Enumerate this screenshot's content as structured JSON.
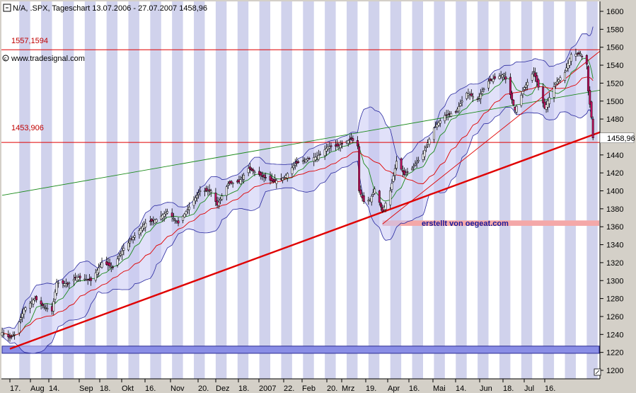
{
  "chart_data": {
    "type": "candlestick",
    "title": "N/A, .SPX, Tageschart 13.07.2006 - 27.07.2007 1458,96",
    "symbol_source": "N/A",
    "symbol": ".SPX",
    "period": "Tageschart",
    "range_label": "13.07.2006 - 27.07.2007",
    "last_price_label": "1458,96",
    "watermark": "www.tradesignal.com",
    "annotation": "erstellt von oegeat.com",
    "ylim": [
      1200,
      1610
    ],
    "y_ticks": [
      1200,
      1220,
      1240,
      1260,
      1280,
      1300,
      1320,
      1340,
      1360,
      1380,
      1400,
      1420,
      1440,
      1460,
      1480,
      1500,
      1520,
      1540,
      1560,
      1580,
      1600
    ],
    "x_ticks": [
      "17.",
      "Aug",
      "14.",
      "Sep",
      "18.",
      "Okt",
      "16.",
      "Nov",
      "20.",
      "Dez",
      "18.",
      "2007",
      "22.",
      "Feb",
      "20.",
      "Mrz",
      "19.",
      "Apr",
      "16.",
      "Mai",
      "14.",
      "Jun",
      "18.",
      "Jul",
      "16."
    ],
    "horizontal_levels": [
      {
        "label": "1557,1594",
        "value": 1557.1594,
        "color": "#e00000"
      },
      {
        "label": "1453,906",
        "value": 1453.906,
        "color": "#e00000"
      }
    ],
    "zones": [
      {
        "name": "support-zone",
        "y_from": 1361,
        "y_to": 1367,
        "x_from": "2007-03-14",
        "x_to": "2007-07-31",
        "color": "#f4a8a8"
      },
      {
        "name": "bottom-zone",
        "y_from": 1219,
        "y_to": 1227,
        "x_from": "2006-07-13",
        "x_to": "2007-07-31",
        "color": "#8a8ee6"
      }
    ],
    "trendlines": [
      {
        "name": "main-support",
        "color": "#e00000",
        "p1": [
          "2006-07-18",
          1224
        ],
        "p2": [
          "2007-07-31",
          1465
        ],
        "width": "thick"
      },
      {
        "name": "upper-green",
        "color": "#1a8a1a",
        "p1": [
          "2006-07-13",
          1395
        ],
        "p2": [
          "2007-07-31",
          1512
        ],
        "width": "thin"
      },
      {
        "name": "steep-red",
        "color": "#e00000",
        "p1": [
          "2007-03-14",
          1363
        ],
        "p2": [
          "2007-07-31",
          1555
        ],
        "width": "thin"
      }
    ],
    "series": [
      {
        "name": "price",
        "kind": "candles",
        "anchors": [
          [
            "2006-07-13",
            1242
          ],
          [
            "2006-07-18",
            1236
          ],
          [
            "2006-07-21",
            1240
          ],
          [
            "2006-07-27",
            1268
          ],
          [
            "2006-08-03",
            1280
          ],
          [
            "2006-08-08",
            1272
          ],
          [
            "2006-08-14",
            1266
          ],
          [
            "2006-08-17",
            1298
          ],
          [
            "2006-08-24",
            1296
          ],
          [
            "2006-08-30",
            1304
          ],
          [
            "2006-09-08",
            1300
          ],
          [
            "2006-09-15",
            1320
          ],
          [
            "2006-09-22",
            1315
          ],
          [
            "2006-09-29",
            1336
          ],
          [
            "2006-10-06",
            1350
          ],
          [
            "2006-10-13",
            1364
          ],
          [
            "2006-10-20",
            1368
          ],
          [
            "2006-10-27",
            1377
          ],
          [
            "2006-11-03",
            1364
          ],
          [
            "2006-11-10",
            1382
          ],
          [
            "2006-11-17",
            1400
          ],
          [
            "2006-11-24",
            1400
          ],
          [
            "2006-11-28",
            1384
          ],
          [
            "2006-12-05",
            1408
          ],
          [
            "2006-12-12",
            1410
          ],
          [
            "2006-12-18",
            1425
          ],
          [
            "2006-12-27",
            1416
          ],
          [
            "2007-01-03",
            1410
          ],
          [
            "2007-01-10",
            1415
          ],
          [
            "2007-01-17",
            1430
          ],
          [
            "2007-01-24",
            1435
          ],
          [
            "2007-01-31",
            1438
          ],
          [
            "2007-02-07",
            1449
          ],
          [
            "2007-02-14",
            1450
          ],
          [
            "2007-02-22",
            1458
          ],
          [
            "2007-02-26",
            1450
          ],
          [
            "2007-02-27",
            1400
          ],
          [
            "2007-03-02",
            1388
          ],
          [
            "2007-03-06",
            1390
          ],
          [
            "2007-03-09",
            1402
          ],
          [
            "2007-03-14",
            1377
          ],
          [
            "2007-03-19",
            1400
          ],
          [
            "2007-03-23",
            1433
          ],
          [
            "2007-03-28",
            1418
          ],
          [
            "2007-04-02",
            1425
          ],
          [
            "2007-04-09",
            1441
          ],
          [
            "2007-04-16",
            1470
          ],
          [
            "2007-04-23",
            1484
          ],
          [
            "2007-04-30",
            1488
          ],
          [
            "2007-05-07",
            1509
          ],
          [
            "2007-05-14",
            1502
          ],
          [
            "2007-05-21",
            1522
          ],
          [
            "2007-05-31",
            1530
          ],
          [
            "2007-06-07",
            1490
          ],
          [
            "2007-06-13",
            1515
          ],
          [
            "2007-06-19",
            1533
          ],
          [
            "2007-06-26",
            1492
          ],
          [
            "2007-07-03",
            1520
          ],
          [
            "2007-07-09",
            1532
          ],
          [
            "2007-07-13",
            1552
          ],
          [
            "2007-07-19",
            1553
          ],
          [
            "2007-07-23",
            1541
          ],
          [
            "2007-07-24",
            1511
          ],
          [
            "2007-07-26",
            1482
          ],
          [
            "2007-07-27",
            1458.96
          ]
        ]
      },
      {
        "name": "bollinger-band",
        "kind": "band",
        "color": "#2a2aa0",
        "fill": "#c8c8f4"
      },
      {
        "name": "sma-fast",
        "kind": "line",
        "color": "#1a8a1a"
      },
      {
        "name": "sma-slow",
        "kind": "line",
        "color": "#e00000"
      }
    ],
    "grid": false,
    "shaded_weeks": true,
    "shade_color": "#d0d2ec",
    "background": "#ffffff",
    "frame_color": "#d4d0c8"
  }
}
